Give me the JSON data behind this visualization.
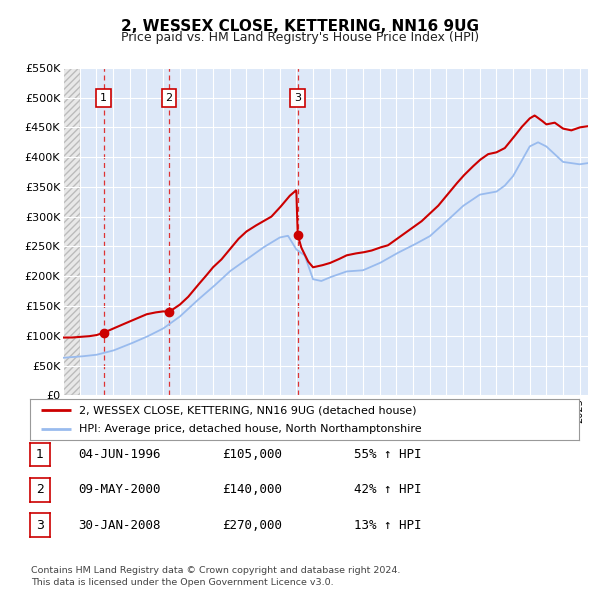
{
  "title": "2, WESSEX CLOSE, KETTERING, NN16 9UG",
  "subtitle": "Price paid vs. HM Land Registry's House Price Index (HPI)",
  "ylim": [
    0,
    550000
  ],
  "yticks": [
    0,
    50000,
    100000,
    150000,
    200000,
    250000,
    300000,
    350000,
    400000,
    450000,
    500000,
    550000
  ],
  "ytick_labels": [
    "£0",
    "£50K",
    "£100K",
    "£150K",
    "£200K",
    "£250K",
    "£300K",
    "£350K",
    "£400K",
    "£450K",
    "£500K",
    "£550K"
  ],
  "background_color": "#ffffff",
  "plot_bg_color": "#dde8f8",
  "hatch_bg_color": "#e8e8e8",
  "grid_color": "#ffffff",
  "sale_color": "#cc0000",
  "hpi_color": "#99bbee",
  "sale_dot_color": "#cc0000",
  "vline_color": "#dd3333",
  "legend_sale_label": "2, WESSEX CLOSE, KETTERING, NN16 9UG (detached house)",
  "legend_hpi_label": "HPI: Average price, detached house, North Northamptonshire",
  "sales": [
    {
      "date_dec": 1996.43,
      "price": 105000,
      "label": "1"
    },
    {
      "date_dec": 2000.36,
      "price": 140000,
      "label": "2"
    },
    {
      "date_dec": 2008.08,
      "price": 270000,
      "label": "3"
    }
  ],
  "table_rows": [
    {
      "num": "1",
      "date": "04-JUN-1996",
      "price": "£105,000",
      "hpi_pct": "55% ↑ HPI"
    },
    {
      "num": "2",
      "date": "09-MAY-2000",
      "price": "£140,000",
      "hpi_pct": "42% ↑ HPI"
    },
    {
      "num": "3",
      "date": "30-JAN-2008",
      "price": "£270,000",
      "hpi_pct": "13% ↑ HPI"
    }
  ],
  "footer": "Contains HM Land Registry data © Crown copyright and database right 2024.\nThis data is licensed under the Open Government Licence v3.0.",
  "xmin": 1994.0,
  "xmax": 2025.5,
  "hatch_end": 1995.0,
  "data_start": 1995.0
}
